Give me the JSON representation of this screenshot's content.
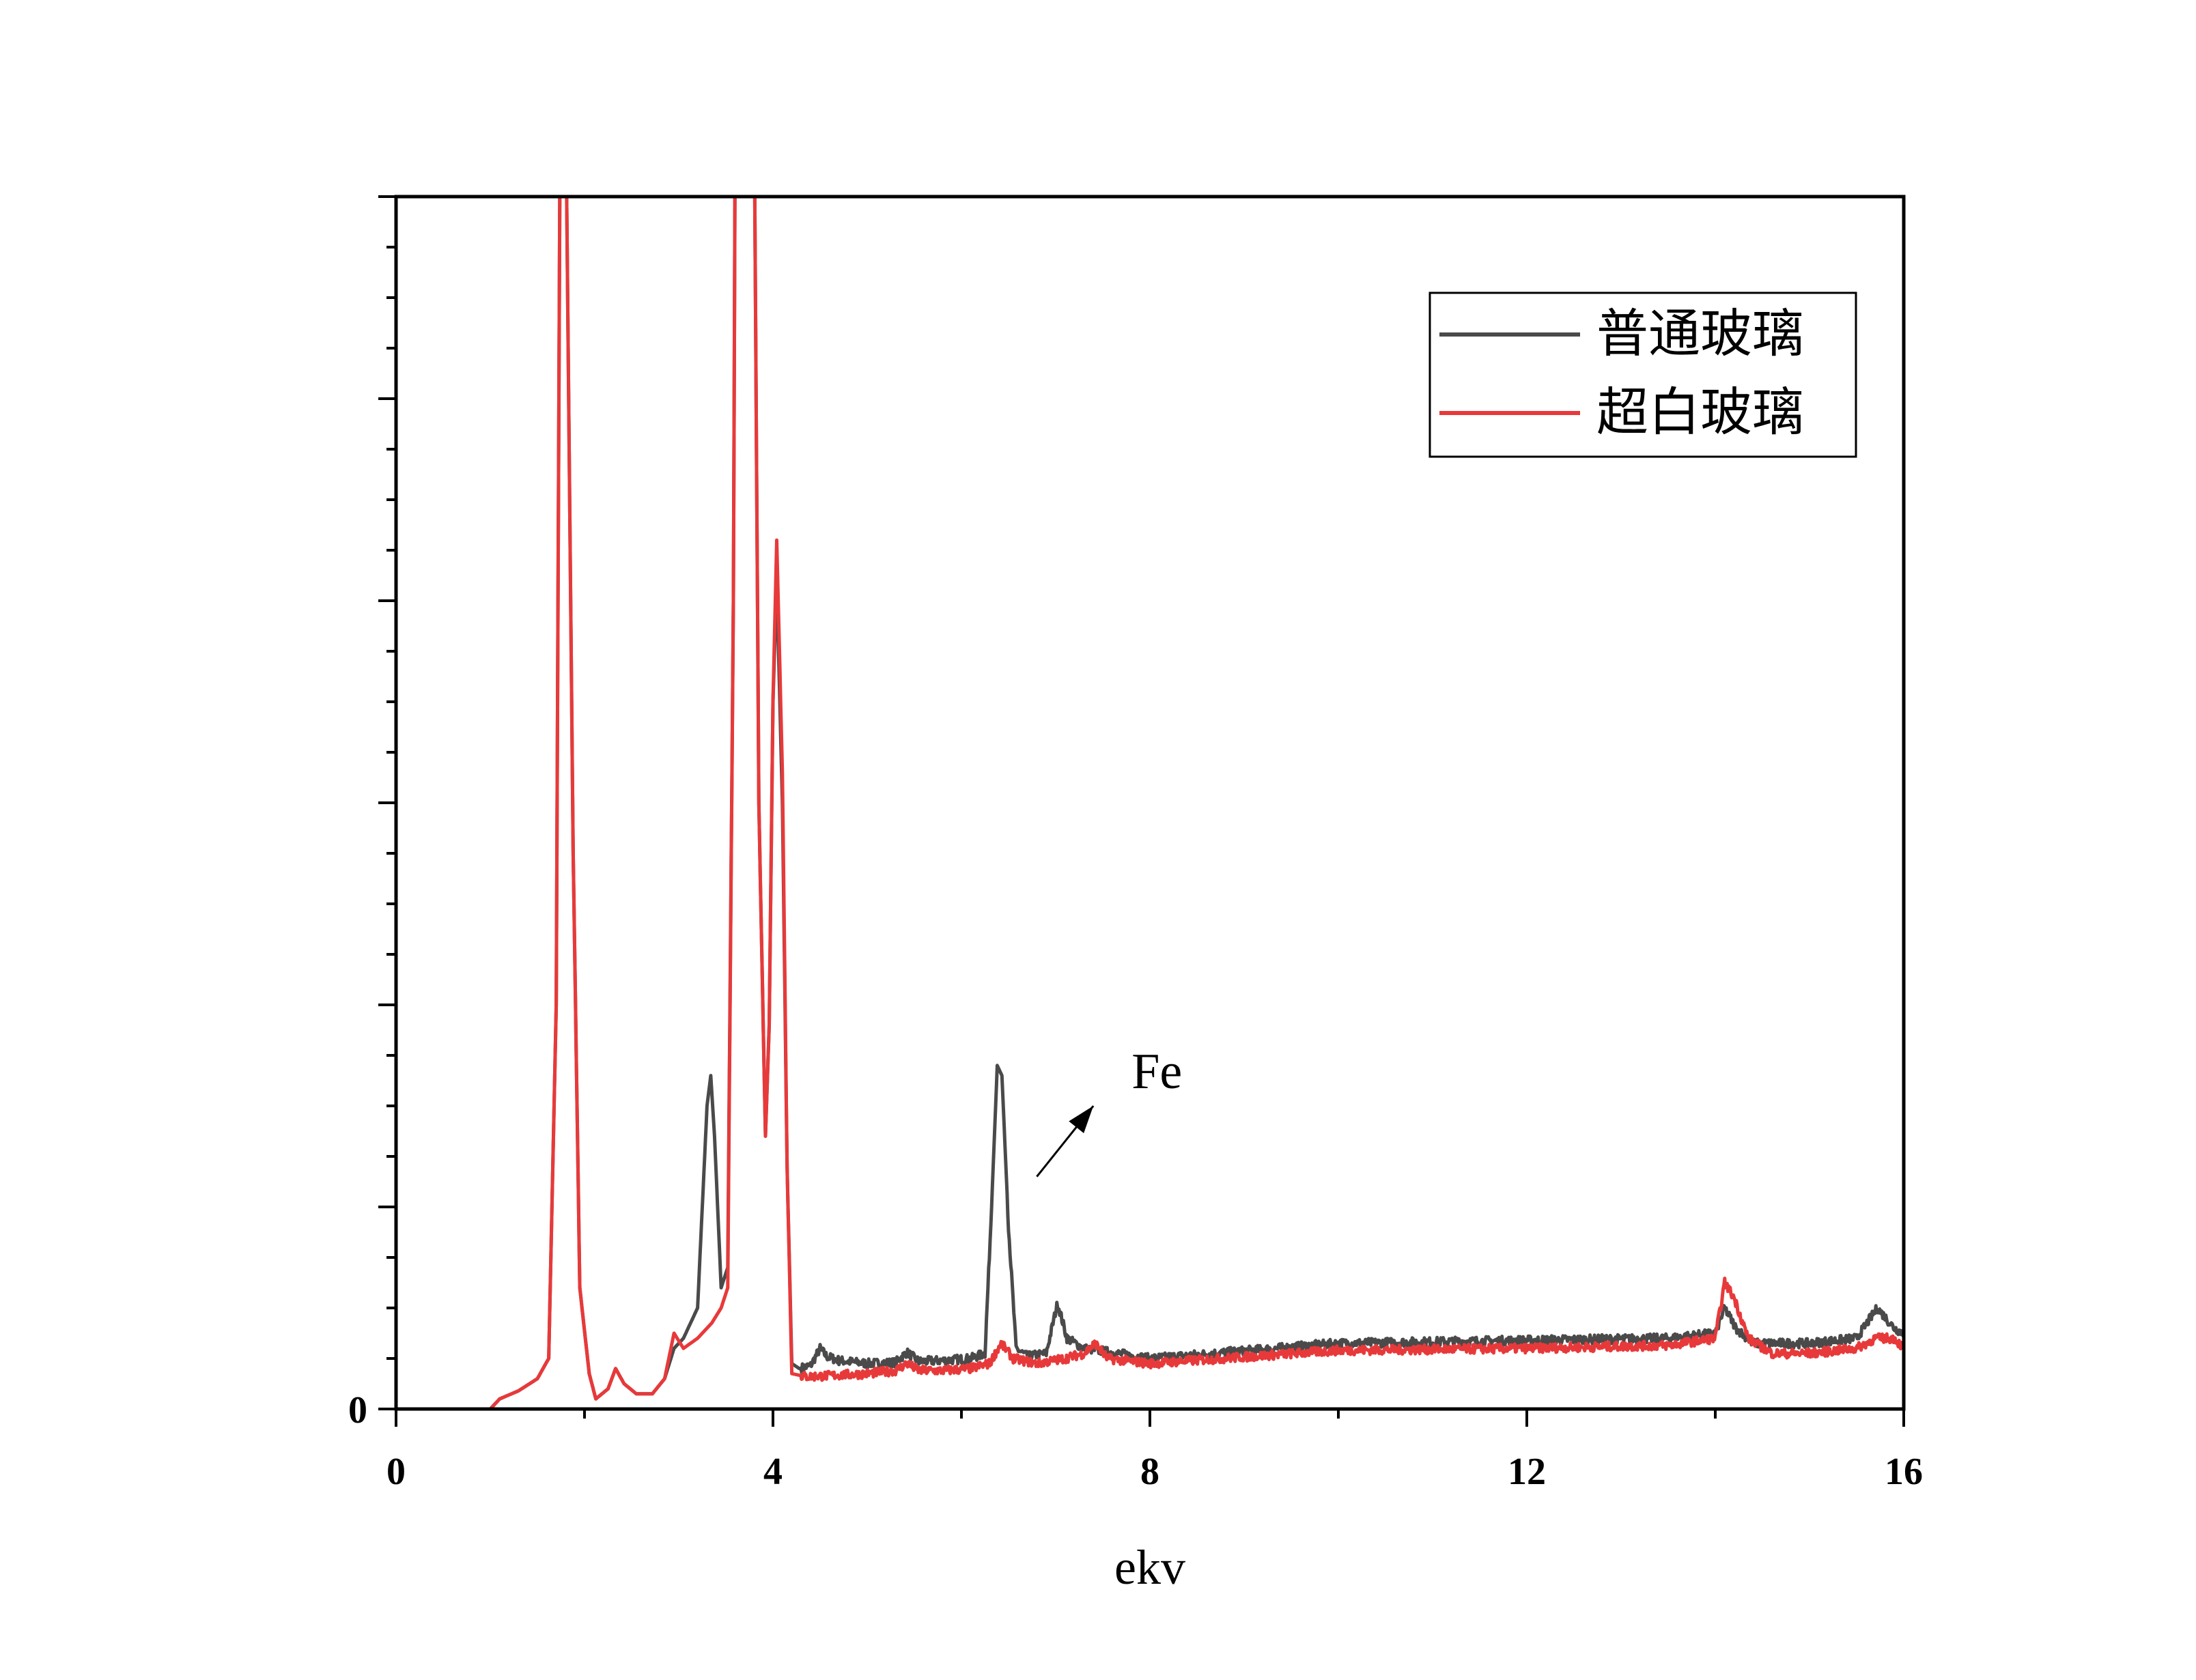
{
  "chart_data": {
    "type": "line",
    "title": "",
    "xlabel": "ekv",
    "ylabel": "",
    "xlim": [
      0,
      16
    ],
    "ylim": [
      0,
      120
    ],
    "x_ticks": [
      0,
      4,
      8,
      12,
      16
    ],
    "x_minor_step": 2,
    "y_ticks": [
      0
    ],
    "y_tick_marks_step": 10,
    "grid": false,
    "legend_position": "top-right",
    "colors": {
      "series_0": "#4a4a4a",
      "series_1": "#e8393a"
    },
    "series": [
      {
        "name": "普通玻璃",
        "peaks": [
          [
            1.0,
            0.0
          ],
          [
            1.1,
            1.0
          ],
          [
            1.3,
            1.8
          ],
          [
            1.5,
            3.0
          ],
          [
            1.62,
            5.0
          ],
          [
            1.7,
            40.0
          ],
          [
            1.74,
            125.0
          ],
          [
            1.8,
            130.0
          ],
          [
            1.88,
            55.0
          ],
          [
            1.95,
            12.0
          ],
          [
            2.05,
            3.5
          ],
          [
            2.12,
            1.0
          ],
          [
            2.25,
            2.0
          ],
          [
            2.33,
            4.0
          ],
          [
            2.42,
            2.5
          ],
          [
            2.55,
            1.5
          ],
          [
            2.72,
            1.5
          ],
          [
            2.85,
            3.0
          ],
          [
            2.95,
            6.0
          ],
          [
            3.05,
            7.0
          ],
          [
            3.2,
            10.0
          ],
          [
            3.3,
            30.0
          ],
          [
            3.34,
            33.0
          ],
          [
            3.38,
            27.0
          ],
          [
            3.45,
            12.0
          ],
          [
            3.52,
            14.0
          ],
          [
            3.58,
            80.0
          ],
          [
            3.6,
            130.0
          ],
          [
            3.8,
            130.0
          ],
          [
            3.85,
            60.0
          ],
          [
            3.92,
            27.0
          ],
          [
            3.96,
            38.0
          ],
          [
            4.0,
            70.0
          ],
          [
            4.04,
            82.0
          ],
          [
            4.1,
            60.0
          ],
          [
            4.15,
            24.0
          ],
          [
            4.2,
            4.5
          ],
          [
            4.28,
            4.0
          ],
          [
            4.4,
            4.3
          ],
          [
            4.5,
            6.0
          ],
          [
            4.57,
            5.2
          ],
          [
            4.7,
            4.8
          ],
          [
            5.0,
            4.5
          ],
          [
            5.3,
            4.6
          ],
          [
            5.42,
            5.6
          ],
          [
            5.55,
            4.7
          ],
          [
            5.8,
            4.8
          ],
          [
            6.1,
            5.0
          ],
          [
            6.25,
            5.5
          ],
          [
            6.32,
            20.0
          ],
          [
            6.38,
            34.0
          ],
          [
            6.43,
            33.0
          ],
          [
            6.5,
            18.0
          ],
          [
            6.58,
            6.0
          ],
          [
            6.7,
            5.2
          ],
          [
            6.9,
            5.5
          ],
          [
            7.02,
            10.5
          ],
          [
            7.12,
            7.0
          ],
          [
            7.3,
            6.0
          ],
          [
            7.45,
            5.8
          ],
          [
            8.0,
            5.0
          ],
          [
            10.0,
            6.5
          ],
          [
            12.0,
            6.8
          ],
          [
            13.5,
            7.0
          ],
          [
            14.0,
            7.5
          ],
          [
            14.1,
            10.0
          ],
          [
            14.22,
            8.0
          ],
          [
            14.4,
            6.5
          ],
          [
            15.0,
            6.5
          ],
          [
            15.5,
            7.0
          ],
          [
            15.72,
            10.0
          ],
          [
            15.9,
            8.0
          ],
          [
            16.0,
            7.5
          ]
        ]
      },
      {
        "name": "超白玻璃",
        "peaks": [
          [
            1.0,
            0.0
          ],
          [
            1.1,
            1.0
          ],
          [
            1.3,
            1.8
          ],
          [
            1.5,
            3.0
          ],
          [
            1.62,
            5.0
          ],
          [
            1.7,
            40.0
          ],
          [
            1.74,
            125.0
          ],
          [
            1.8,
            130.0
          ],
          [
            1.88,
            55.0
          ],
          [
            1.95,
            12.0
          ],
          [
            2.05,
            3.5
          ],
          [
            2.12,
            1.0
          ],
          [
            2.25,
            2.0
          ],
          [
            2.33,
            4.0
          ],
          [
            2.42,
            2.5
          ],
          [
            2.55,
            1.5
          ],
          [
            2.72,
            1.5
          ],
          [
            2.85,
            3.0
          ],
          [
            2.95,
            7.5
          ],
          [
            3.05,
            6.0
          ],
          [
            3.2,
            7.0
          ],
          [
            3.35,
            8.5
          ],
          [
            3.45,
            10.0
          ],
          [
            3.52,
            12.0
          ],
          [
            3.58,
            80.0
          ],
          [
            3.6,
            130.0
          ],
          [
            3.8,
            130.0
          ],
          [
            3.85,
            60.0
          ],
          [
            3.92,
            27.0
          ],
          [
            3.96,
            38.0
          ],
          [
            4.0,
            70.0
          ],
          [
            4.04,
            86.0
          ],
          [
            4.1,
            63.0
          ],
          [
            4.15,
            24.0
          ],
          [
            4.2,
            3.5
          ],
          [
            4.35,
            3.2
          ],
          [
            4.6,
            3.3
          ],
          [
            5.0,
            3.5
          ],
          [
            5.3,
            3.8
          ],
          [
            5.42,
            4.5
          ],
          [
            5.55,
            3.8
          ],
          [
            5.8,
            3.8
          ],
          [
            6.1,
            4.0
          ],
          [
            6.3,
            4.5
          ],
          [
            6.42,
            6.5
          ],
          [
            6.55,
            5.0
          ],
          [
            6.8,
            4.5
          ],
          [
            7.1,
            5.0
          ],
          [
            7.3,
            5.5
          ],
          [
            7.42,
            6.5
          ],
          [
            7.55,
            5.0
          ],
          [
            8.0,
            4.5
          ],
          [
            10.0,
            5.8
          ],
          [
            12.0,
            6.0
          ],
          [
            13.5,
            6.3
          ],
          [
            14.0,
            7.0
          ],
          [
            14.1,
            12.5
          ],
          [
            14.2,
            11.0
          ],
          [
            14.35,
            7.0
          ],
          [
            14.6,
            5.5
          ],
          [
            15.0,
            5.5
          ],
          [
            15.5,
            6.0
          ],
          [
            15.7,
            7.0
          ],
          [
            15.9,
            7.0
          ],
          [
            16.0,
            6.0
          ]
        ]
      }
    ],
    "annotations": [
      {
        "text": "Fe",
        "arrow_from": [
          6.8,
          23.0
        ],
        "arrow_to": [
          7.4,
          30.0
        ]
      }
    ]
  }
}
